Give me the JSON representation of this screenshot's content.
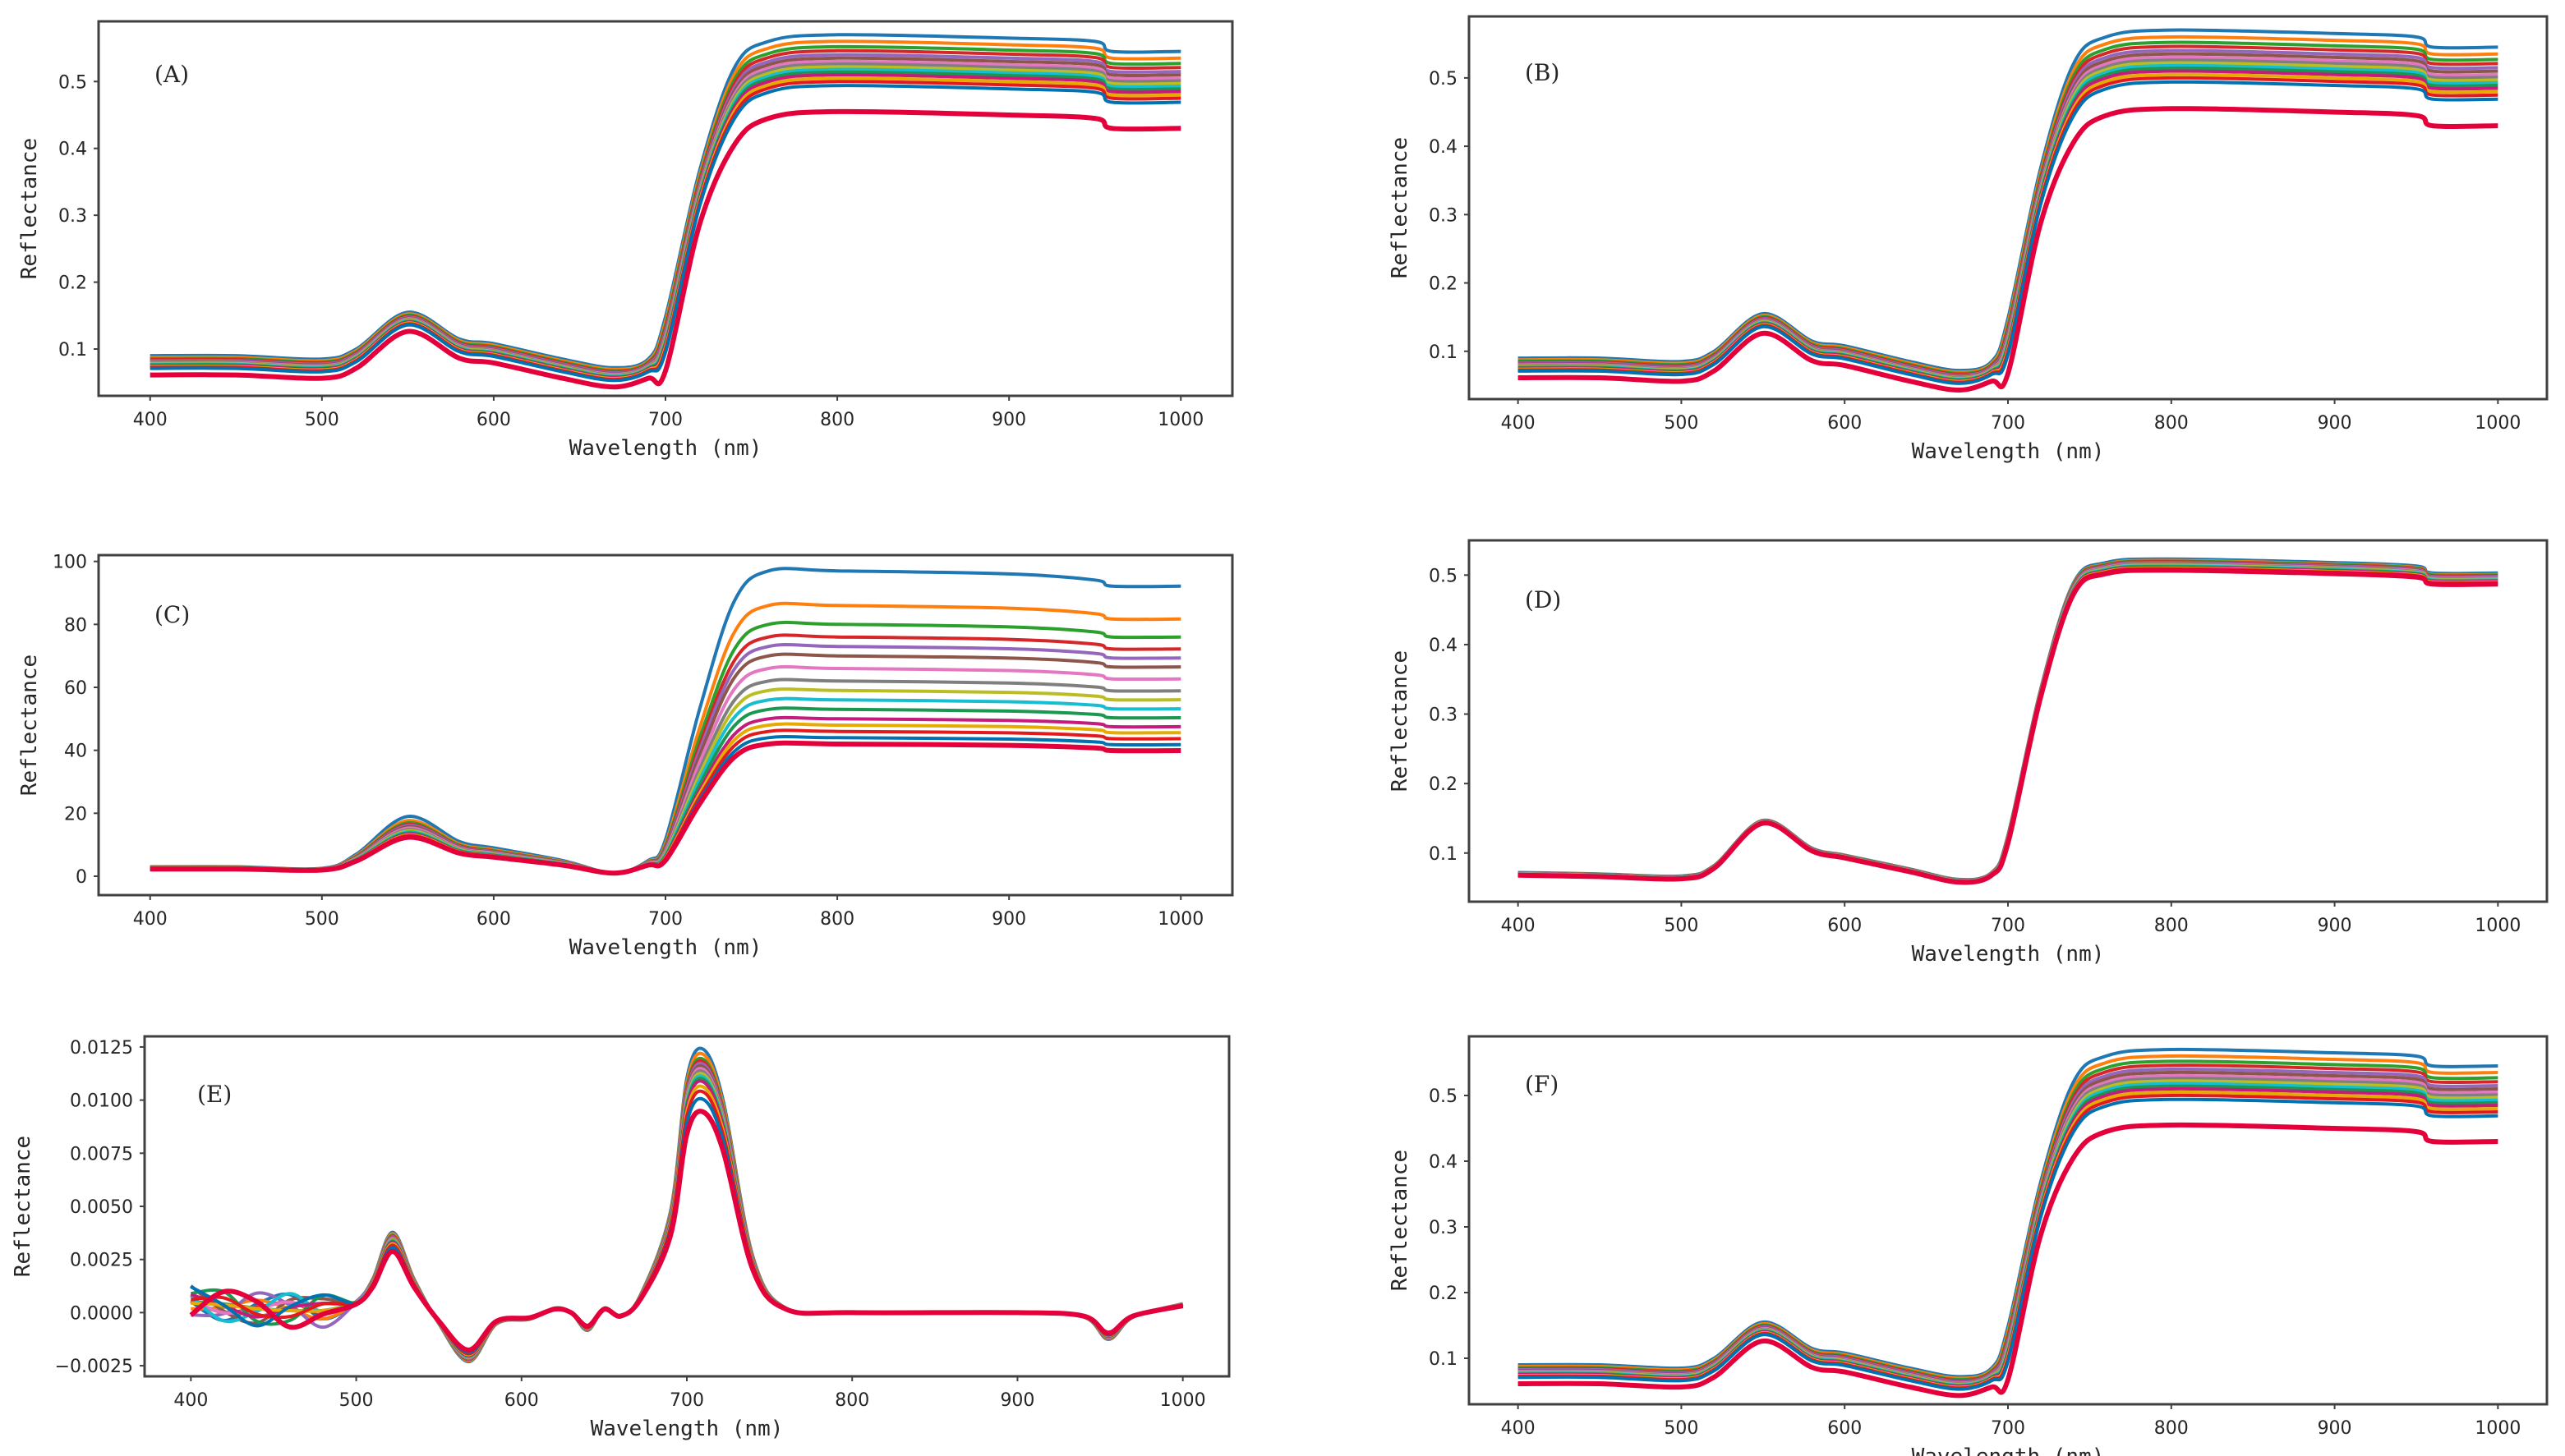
{
  "figure": {
    "series_colors": [
      "#1f77b4",
      "#ff7f0e",
      "#2ca02c",
      "#d62728",
      "#9467bd",
      "#8c564b",
      "#e377c2",
      "#7f7f7f",
      "#bcbd22",
      "#17becf",
      "#1a9850",
      "#c51b7d",
      "#e6ab02",
      "#e31a1c",
      "#0072b2",
      "#d7191c"
    ],
    "frame_color": "#404040"
  },
  "chart_data": [
    {
      "type": "line",
      "panel_label": "(A)",
      "xlabel": "Wavelength (nm)",
      "ylabel": "Reflectance",
      "x": [
        400,
        450,
        500,
        520,
        550,
        580,
        600,
        640,
        670,
        690,
        700,
        720,
        740,
        760,
        800,
        900,
        950,
        960,
        1000
      ],
      "xlim": [
        370,
        1030
      ],
      "ylim": [
        0.03,
        0.59
      ],
      "xticks": [
        400,
        500,
        600,
        700,
        800,
        900,
        1000
      ],
      "xtick_labels": [
        "400",
        "500",
        "600",
        "700",
        "800",
        "900",
        "1000"
      ],
      "yticks": [
        0.1,
        0.2,
        0.3,
        0.4,
        0.5
      ],
      "ytick_labels": [
        "0.1",
        "0.2",
        "0.3",
        "0.4",
        "0.5"
      ],
      "series_count": 16,
      "series_base": [
        0.08,
        0.08,
        0.075,
        0.09,
        0.145,
        0.105,
        0.098,
        0.075,
        0.062,
        0.075,
        0.12,
        0.34,
        0.48,
        0.52,
        0.53,
        0.525,
        0.52,
        0.505,
        0.505
      ],
      "series_offsets": [
        0.04,
        0.03,
        0.022,
        0.016,
        0.01,
        0.005,
        0.0,
        -0.004,
        -0.008,
        -0.012,
        -0.016,
        -0.02,
        -0.025,
        -0.03,
        -0.036,
        -0.075
      ],
      "series_visible_min": [
        0.06,
        0.06,
        0.057,
        0.065,
        0.11,
        0.085,
        0.08,
        0.065,
        0.055,
        0.062,
        0.09,
        0.27,
        0.41,
        0.435,
        0.44,
        0.44,
        0.435,
        0.43,
        0.43
      ],
      "series_visible_max": [
        0.09,
        0.09,
        0.085,
        0.1,
        0.175,
        0.12,
        0.11,
        0.085,
        0.07,
        0.085,
        0.14,
        0.42,
        0.545,
        0.565,
        0.565,
        0.555,
        0.55,
        0.535,
        0.535
      ]
    },
    {
      "type": "line",
      "panel_label": "(B)",
      "xlabel": "Wavelength (nm)",
      "ylabel": "Reflectance",
      "x": [
        400,
        450,
        500,
        520,
        550,
        580,
        600,
        640,
        670,
        690,
        700,
        720,
        740,
        760,
        800,
        900,
        950,
        960,
        1000
      ],
      "xlim": [
        370,
        1030
      ],
      "ylim": [
        0.03,
        0.59
      ],
      "xticks": [
        400,
        500,
        600,
        700,
        800,
        900,
        1000
      ],
      "xtick_labels": [
        "400",
        "500",
        "600",
        "700",
        "800",
        "900",
        "1000"
      ],
      "yticks": [
        0.1,
        0.2,
        0.3,
        0.4,
        0.5
      ],
      "ytick_labels": [
        "0.1",
        "0.2",
        "0.3",
        "0.4",
        "0.5"
      ],
      "series_count": 16,
      "series_base": [
        0.08,
        0.08,
        0.075,
        0.09,
        0.145,
        0.105,
        0.098,
        0.075,
        0.062,
        0.075,
        0.12,
        0.34,
        0.48,
        0.52,
        0.53,
        0.525,
        0.52,
        0.505,
        0.505
      ],
      "series_offsets": [
        0.04,
        0.03,
        0.022,
        0.016,
        0.01,
        0.005,
        0.0,
        -0.004,
        -0.008,
        -0.012,
        -0.016,
        -0.02,
        -0.025,
        -0.03,
        -0.036,
        -0.075
      ]
    },
    {
      "type": "line",
      "panel_label": "(C)",
      "xlabel": "Wavelength (nm)",
      "ylabel": "Reflectance",
      "x": [
        400,
        450,
        500,
        520,
        550,
        580,
        600,
        640,
        670,
        690,
        700,
        720,
        740,
        760,
        800,
        900,
        950,
        960,
        1000
      ],
      "xlim": [
        370,
        1030
      ],
      "ylim": [
        -6,
        102
      ],
      "xticks": [
        400,
        500,
        600,
        700,
        800,
        900,
        1000
      ],
      "xtick_labels": [
        "400",
        "500",
        "600",
        "700",
        "800",
        "900",
        "1000"
      ],
      "yticks": [
        0,
        20,
        40,
        60,
        80,
        100
      ],
      "ytick_labels": [
        "0",
        "20",
        "40",
        "60",
        "80",
        "100"
      ],
      "series_count": 16,
      "series_norm_shape": [
        0.02,
        0.02,
        0.015,
        0.06,
        0.18,
        0.1,
        0.08,
        0.04,
        0.0,
        0.04,
        0.12,
        0.55,
        0.9,
        1.0,
        1.0,
        0.99,
        0.97,
        0.95,
        0.95
      ],
      "series_peaks_at_760": [
        97,
        86,
        80,
        76,
        73,
        70,
        66,
        62,
        59,
        56,
        53,
        50,
        48,
        46,
        44,
        42
      ]
    },
    {
      "type": "line",
      "panel_label": "(D)",
      "xlabel": "Wavelength (nm)",
      "ylabel": "Reflectance",
      "x": [
        400,
        450,
        500,
        520,
        550,
        580,
        600,
        640,
        670,
        690,
        700,
        720,
        740,
        760,
        800,
        900,
        950,
        960,
        1000
      ],
      "xlim": [
        370,
        1030
      ],
      "ylim": [
        0.03,
        0.55
      ],
      "xticks": [
        400,
        500,
        600,
        700,
        800,
        900,
        1000
      ],
      "xtick_labels": [
        "400",
        "500",
        "600",
        "700",
        "800",
        "900",
        "1000"
      ],
      "yticks": [
        0.1,
        0.2,
        0.3,
        0.4,
        0.5
      ],
      "ytick_labels": [
        "0.1",
        "0.2",
        "0.3",
        "0.4",
        "0.5"
      ],
      "series_count": 16,
      "series_base": [
        0.07,
        0.068,
        0.065,
        0.08,
        0.145,
        0.105,
        0.095,
        0.075,
        0.06,
        0.07,
        0.12,
        0.33,
        0.48,
        0.51,
        0.515,
        0.51,
        0.505,
        0.495,
        0.495
      ],
      "series_offsets": [
        0.008,
        0.006,
        0.005,
        0.004,
        0.003,
        0.002,
        0.001,
        0.0,
        -0.001,
        -0.002,
        -0.003,
        -0.004,
        -0.005,
        -0.006,
        -0.007,
        -0.008
      ]
    },
    {
      "type": "line",
      "panel_label": "(E)",
      "xlabel": "Wavelength (nm)",
      "ylabel": "Reflectance",
      "x": [
        400,
        420,
        440,
        460,
        480,
        500,
        510,
        522,
        535,
        550,
        568,
        585,
        605,
        620,
        630,
        640,
        650,
        660,
        672,
        690,
        700,
        710,
        722,
        740,
        760,
        800,
        900,
        940,
        955,
        970,
        1000
      ],
      "xlim": [
        372,
        1028
      ],
      "ylim": [
        -0.003,
        0.013
      ],
      "xticks": [
        400,
        500,
        600,
        700,
        800,
        900,
        1000
      ],
      "xtick_labels": [
        "400",
        "500",
        "600",
        "700",
        "800",
        "900",
        "1000"
      ],
      "yticks": [
        -0.0025,
        0.0,
        0.0025,
        0.005,
        0.0075,
        0.01,
        0.0125
      ],
      "ytick_labels": [
        "−0.0025",
        "0.0000",
        "0.0025",
        "0.0050",
        "0.0075",
        "0.0100",
        "0.0125"
      ],
      "series_count": 16,
      "series_base": [
        0.0005,
        0.0004,
        0.0002,
        0.0001,
        0.0001,
        0.0005,
        0.0015,
        0.0036,
        0.0015,
        -0.0005,
        -0.0022,
        -0.0005,
        -0.0003,
        0.0002,
        0.0,
        -0.0008,
        0.0002,
        -0.0002,
        0.0008,
        0.0045,
        0.0105,
        0.0118,
        0.0095,
        0.0025,
        0.0002,
        0.0,
        0.0,
        -0.0002,
        -0.0012,
        -0.0002,
        0.0004
      ],
      "peak_scales": [
        1.05,
        1.03,
        1.01,
        1.0,
        0.99,
        0.98,
        0.97,
        0.96,
        0.95,
        0.94,
        0.93,
        0.92,
        0.9,
        0.88,
        0.85,
        0.8
      ]
    },
    {
      "type": "line",
      "panel_label": "(F)",
      "xlabel": "Wavelength (nm)",
      "ylabel": "Reflectance",
      "x": [
        400,
        450,
        500,
        520,
        550,
        580,
        600,
        640,
        670,
        690,
        700,
        720,
        740,
        760,
        800,
        900,
        950,
        960,
        1000
      ],
      "xlim": [
        370,
        1030
      ],
      "ylim": [
        0.03,
        0.59
      ],
      "xticks": [
        400,
        500,
        600,
        700,
        800,
        900,
        1000
      ],
      "xtick_labels": [
        "400",
        "500",
        "600",
        "700",
        "800",
        "900",
        "1000"
      ],
      "yticks": [
        0.1,
        0.2,
        0.3,
        0.4,
        0.5
      ],
      "ytick_labels": [
        "0.1",
        "0.2",
        "0.3",
        "0.4",
        "0.5"
      ],
      "series_count": 16,
      "series_base": [
        0.08,
        0.08,
        0.075,
        0.09,
        0.145,
        0.105,
        0.098,
        0.075,
        0.062,
        0.075,
        0.12,
        0.34,
        0.48,
        0.52,
        0.53,
        0.525,
        0.52,
        0.505,
        0.505
      ],
      "series_offsets": [
        0.04,
        0.03,
        0.022,
        0.016,
        0.01,
        0.005,
        0.0,
        -0.004,
        -0.008,
        -0.012,
        -0.016,
        -0.02,
        -0.025,
        -0.03,
        -0.036,
        -0.075
      ]
    }
  ]
}
